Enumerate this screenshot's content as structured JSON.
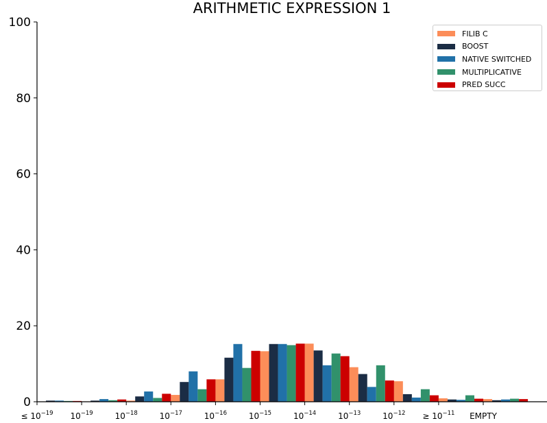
{
  "chart_data": {
    "type": "bar",
    "title": "ARITHMETIC EXPRESSION 1",
    "xlabel": "",
    "ylabel": "",
    "ylim": [
      0,
      100
    ],
    "yticks": [
      "0",
      "20",
      "40",
      "60",
      "80",
      "100"
    ],
    "categories": [
      {
        "base": "≤ 10",
        "exp": "−19"
      },
      {
        "base": "10",
        "exp": "−19"
      },
      {
        "base": "10",
        "exp": "−18"
      },
      {
        "base": "10",
        "exp": "−17"
      },
      {
        "base": "10",
        "exp": "−16"
      },
      {
        "base": "10",
        "exp": "−15"
      },
      {
        "base": "10",
        "exp": "−14"
      },
      {
        "base": "10",
        "exp": "−13"
      },
      {
        "base": "10",
        "exp": "−12"
      },
      {
        "base": "≥ 10",
        "exp": "−11"
      },
      {
        "base": "EMPTY",
        "exp": ""
      }
    ],
    "legend_position": "top-right",
    "grid": false,
    "series": [
      {
        "name": "FILIB C",
        "color": "#fc8d59",
        "values": [
          0.0,
          0.1,
          0.3,
          1.8,
          5.9,
          13.3,
          15.3,
          9.1,
          5.4,
          0.9,
          0.7
        ]
      },
      {
        "name": "BOOST",
        "color": "#1b2d45",
        "values": [
          0.3,
          0.3,
          1.4,
          5.2,
          11.6,
          15.2,
          13.5,
          7.3,
          2.0,
          0.6,
          0.4
        ]
      },
      {
        "name": "NATIVE SWITCHED",
        "color": "#2171a8",
        "values": [
          0.3,
          0.7,
          2.7,
          8.0,
          15.2,
          15.2,
          9.6,
          3.9,
          1.1,
          0.5,
          0.6
        ]
      },
      {
        "name": "MULTIPLICATIVE",
        "color": "#31916b",
        "values": [
          0.2,
          0.4,
          1.0,
          3.3,
          8.9,
          14.9,
          12.7,
          9.6,
          3.3,
          1.7,
          0.8
        ]
      },
      {
        "name": "PRED SUCC",
        "color": "#cc0000",
        "values": [
          0.2,
          0.6,
          2.1,
          5.9,
          13.4,
          15.3,
          12.0,
          5.6,
          1.7,
          0.8,
          0.7
        ]
      }
    ]
  }
}
